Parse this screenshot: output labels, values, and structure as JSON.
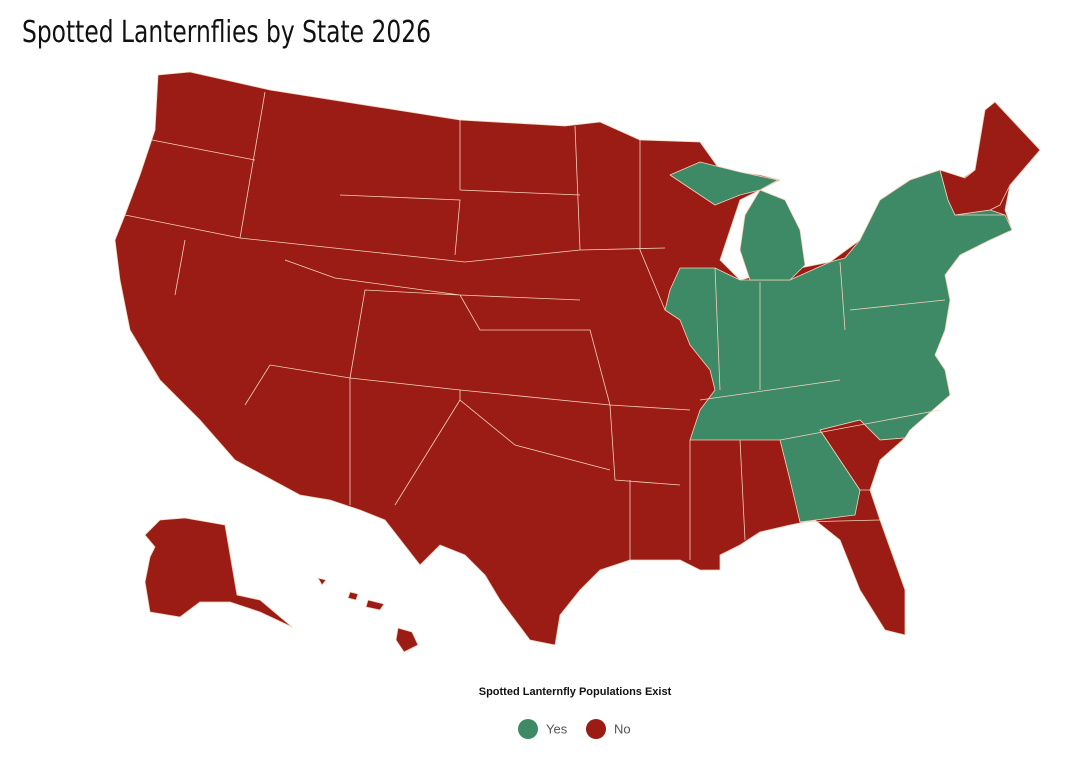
{
  "title": "Spotted Lanternflies by State 2026",
  "legend": {
    "title": "Spotted Lanternfly Populations Exist",
    "items": [
      {
        "label": "Yes",
        "color": "#3e8a66"
      },
      {
        "label": "No",
        "color": "#9b1c14"
      }
    ]
  }
}
